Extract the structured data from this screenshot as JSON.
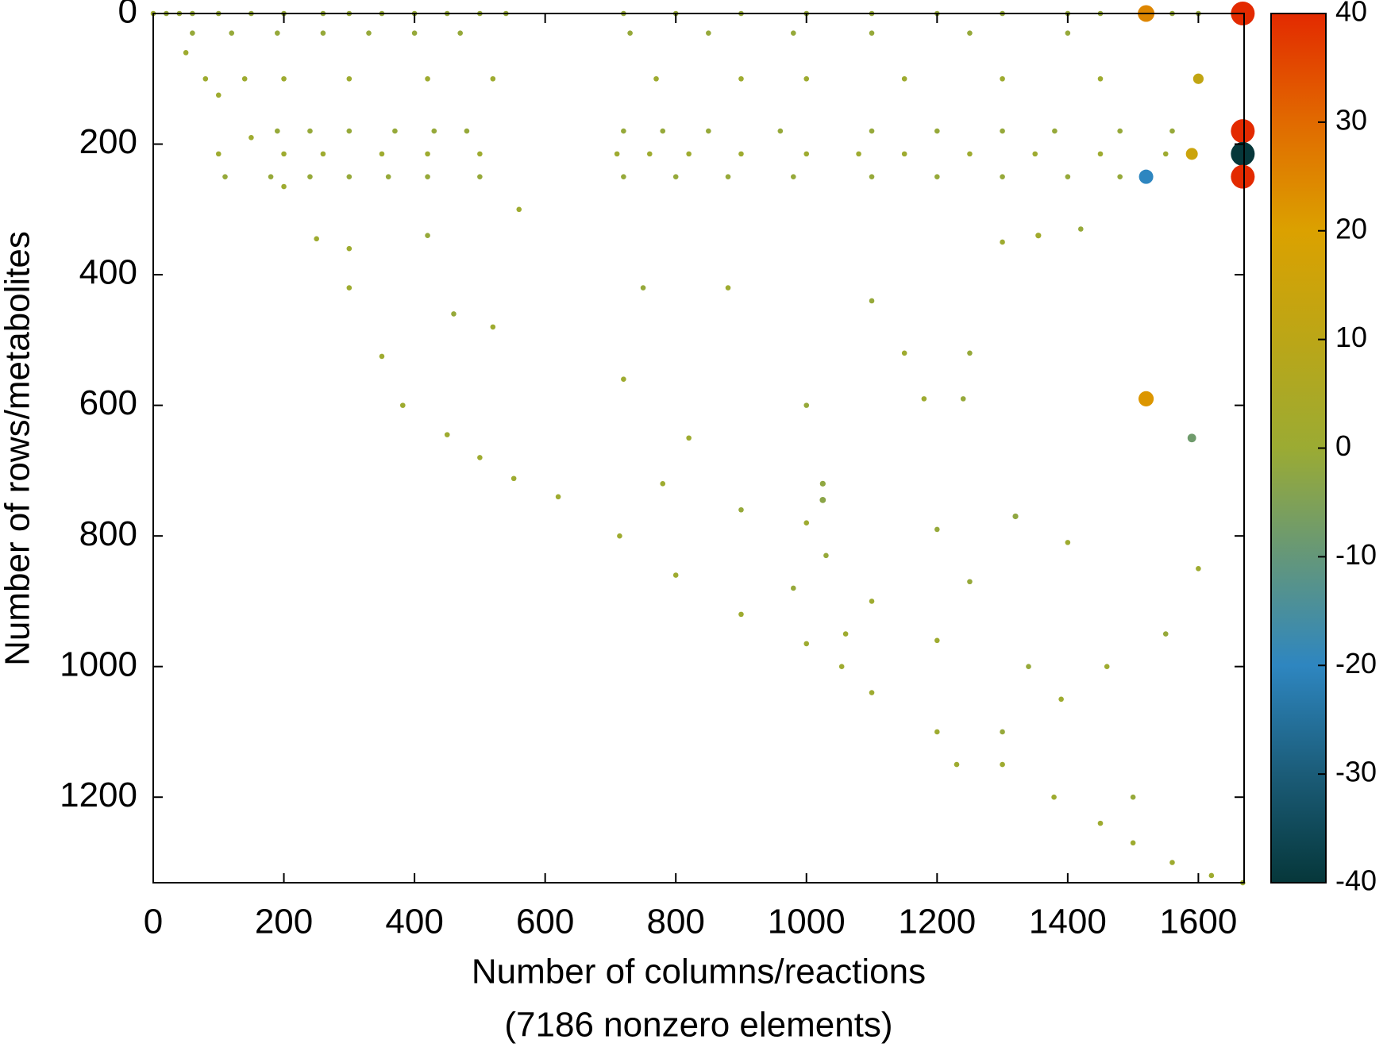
{
  "chart_data": {
    "type": "scatter",
    "x_label": "Number of columns/reactions",
    "x_label_note": "(7186 nonzero elements)",
    "y_label": "Number of rows/metabolites",
    "xlim": [
      0,
      1670
    ],
    "xticks": [
      0,
      200,
      400,
      600,
      800,
      1000,
      1200,
      1400,
      1600
    ],
    "ylim": [
      0,
      1331
    ],
    "yticks": [
      0,
      200,
      400,
      600,
      800,
      1000,
      1200
    ],
    "y_inverted": true,
    "clim": [
      -40,
      40
    ],
    "cticks": [
      -40,
      -30,
      -20,
      -10,
      0,
      10,
      20,
      30,
      40
    ],
    "colormap": [
      [
        -40,
        "#06373a"
      ],
      [
        -30,
        "#1b5c78"
      ],
      [
        -20,
        "#2e86c0"
      ],
      [
        -10,
        "#64977a"
      ],
      [
        0,
        "#9bab33"
      ],
      [
        10,
        "#bba617"
      ],
      [
        20,
        "#dba100"
      ],
      [
        30,
        "#e16a00"
      ],
      [
        40,
        "#e32a00"
      ]
    ],
    "x": [
      0,
      50,
      100,
      150,
      200,
      250,
      300,
      350,
      382,
      450,
      500,
      552,
      620,
      714,
      800,
      900,
      1000,
      1054,
      1100,
      1200,
      1300,
      1379,
      1450,
      1500,
      1560,
      1620,
      1668,
      20,
      40,
      60,
      100,
      150,
      200,
      260,
      300,
      350,
      400,
      450,
      500,
      540,
      720,
      800,
      900,
      1000,
      1100,
      1200,
      1300,
      1400,
      1450,
      1560,
      1600,
      60,
      120,
      190,
      260,
      330,
      400,
      470,
      730,
      850,
      980,
      1100,
      1250,
      1400,
      80,
      140,
      200,
      300,
      420,
      520,
      770,
      900,
      1000,
      1150,
      1300,
      1450,
      190,
      240,
      300,
      370,
      430,
      480,
      720,
      780,
      850,
      960,
      1100,
      1200,
      1300,
      1380,
      1480,
      1560,
      100,
      200,
      260,
      350,
      420,
      500,
      710,
      760,
      820,
      900,
      1000,
      1080,
      1150,
      1250,
      1350,
      1450,
      1550,
      110,
      180,
      240,
      300,
      360,
      420,
      500,
      720,
      800,
      880,
      980,
      1100,
      1200,
      1300,
      1400,
      1480,
      420,
      300,
      460,
      520,
      750,
      880,
      1100,
      1150,
      1250,
      1300,
      1420,
      1180,
      1240,
      820,
      1000,
      780,
      900,
      1000,
      1200,
      1400,
      1030,
      1060,
      1250,
      1100,
      1340,
      1460,
      1300,
      1230,
      1500,
      1390,
      1550,
      1600,
      980,
      720,
      1025,
      1025,
      1320,
      560,
      1355,
      1200,
      1520,
      1668,
      1668,
      1668,
      1668,
      1520,
      1520,
      1590,
      1590,
      1600
    ],
    "y": [
      0,
      60,
      125,
      190,
      265,
      345,
      420,
      525,
      600,
      645,
      680,
      712,
      740,
      800,
      860,
      920,
      965,
      1000,
      1040,
      1100,
      1150,
      1200,
      1240,
      1270,
      1300,
      1320,
      1331,
      0,
      0,
      0,
      0,
      0,
      0,
      0,
      0,
      0,
      0,
      0,
      0,
      0,
      0,
      0,
      0,
      0,
      0,
      0,
      0,
      0,
      0,
      0,
      0,
      30,
      30,
      30,
      30,
      30,
      30,
      30,
      30,
      30,
      30,
      30,
      30,
      30,
      100,
      100,
      100,
      100,
      100,
      100,
      100,
      100,
      100,
      100,
      100,
      100,
      180,
      180,
      180,
      180,
      180,
      180,
      180,
      180,
      180,
      180,
      180,
      180,
      180,
      180,
      180,
      180,
      215,
      215,
      215,
      215,
      215,
      215,
      215,
      215,
      215,
      215,
      215,
      215,
      215,
      215,
      215,
      215,
      215,
      250,
      250,
      250,
      250,
      250,
      250,
      250,
      250,
      250,
      250,
      250,
      250,
      250,
      250,
      250,
      250,
      340,
      360,
      460,
      480,
      420,
      420,
      440,
      520,
      520,
      350,
      330,
      590,
      590,
      650,
      600,
      720,
      760,
      780,
      790,
      810,
      830,
      950,
      870,
      900,
      1000,
      1000,
      1100,
      1150,
      1200,
      1050,
      950,
      850,
      880,
      560,
      720,
      745,
      770,
      300,
      340,
      960,
      0,
      0,
      180,
      215,
      250,
      250,
      590,
      650,
      215,
      100
    ],
    "values": [
      1,
      1,
      1,
      1,
      1,
      1,
      1,
      1,
      1,
      1,
      1,
      1,
      1,
      1,
      1,
      1,
      1,
      1,
      1,
      1,
      1,
      1,
      1,
      1,
      1,
      1,
      1,
      -1,
      -1,
      -1,
      -1,
      -1,
      -1,
      -1,
      -1,
      -1,
      -1,
      -1,
      -1,
      -1,
      -1,
      -1,
      -1,
      -1,
      -1,
      -1,
      -1,
      -1,
      -1,
      -1,
      -1,
      -1,
      -1,
      -1,
      -1,
      -1,
      -1,
      -1,
      -1,
      -1,
      -1,
      -1,
      -1,
      -1,
      1,
      1,
      1,
      1,
      1,
      1,
      1,
      1,
      1,
      1,
      1,
      1,
      -1,
      -1,
      -1,
      -1,
      -1,
      -1,
      -1,
      -1,
      -1,
      -1,
      -1,
      -1,
      -1,
      -1,
      -1,
      -1,
      1,
      1,
      1,
      1,
      1,
      1,
      1,
      1,
      1,
      1,
      1,
      1,
      1,
      1,
      1,
      1,
      1,
      -1,
      -1,
      -1,
      -1,
      -1,
      -1,
      -1,
      -1,
      -1,
      -1,
      -1,
      -1,
      -1,
      -1,
      -1,
      -1,
      -1,
      1,
      -1,
      1,
      -1,
      1,
      -1,
      1,
      -1,
      1,
      -1,
      1,
      -1,
      1,
      -1,
      1,
      -1,
      1,
      -1,
      1,
      -1,
      1,
      -1,
      1,
      -1,
      1,
      -1,
      1,
      -1,
      1,
      -1,
      1,
      -1,
      1,
      -2,
      -3,
      -2,
      1,
      2,
      1,
      25,
      40,
      40,
      -40,
      40,
      -20,
      22,
      -8,
      15,
      12
    ]
  }
}
